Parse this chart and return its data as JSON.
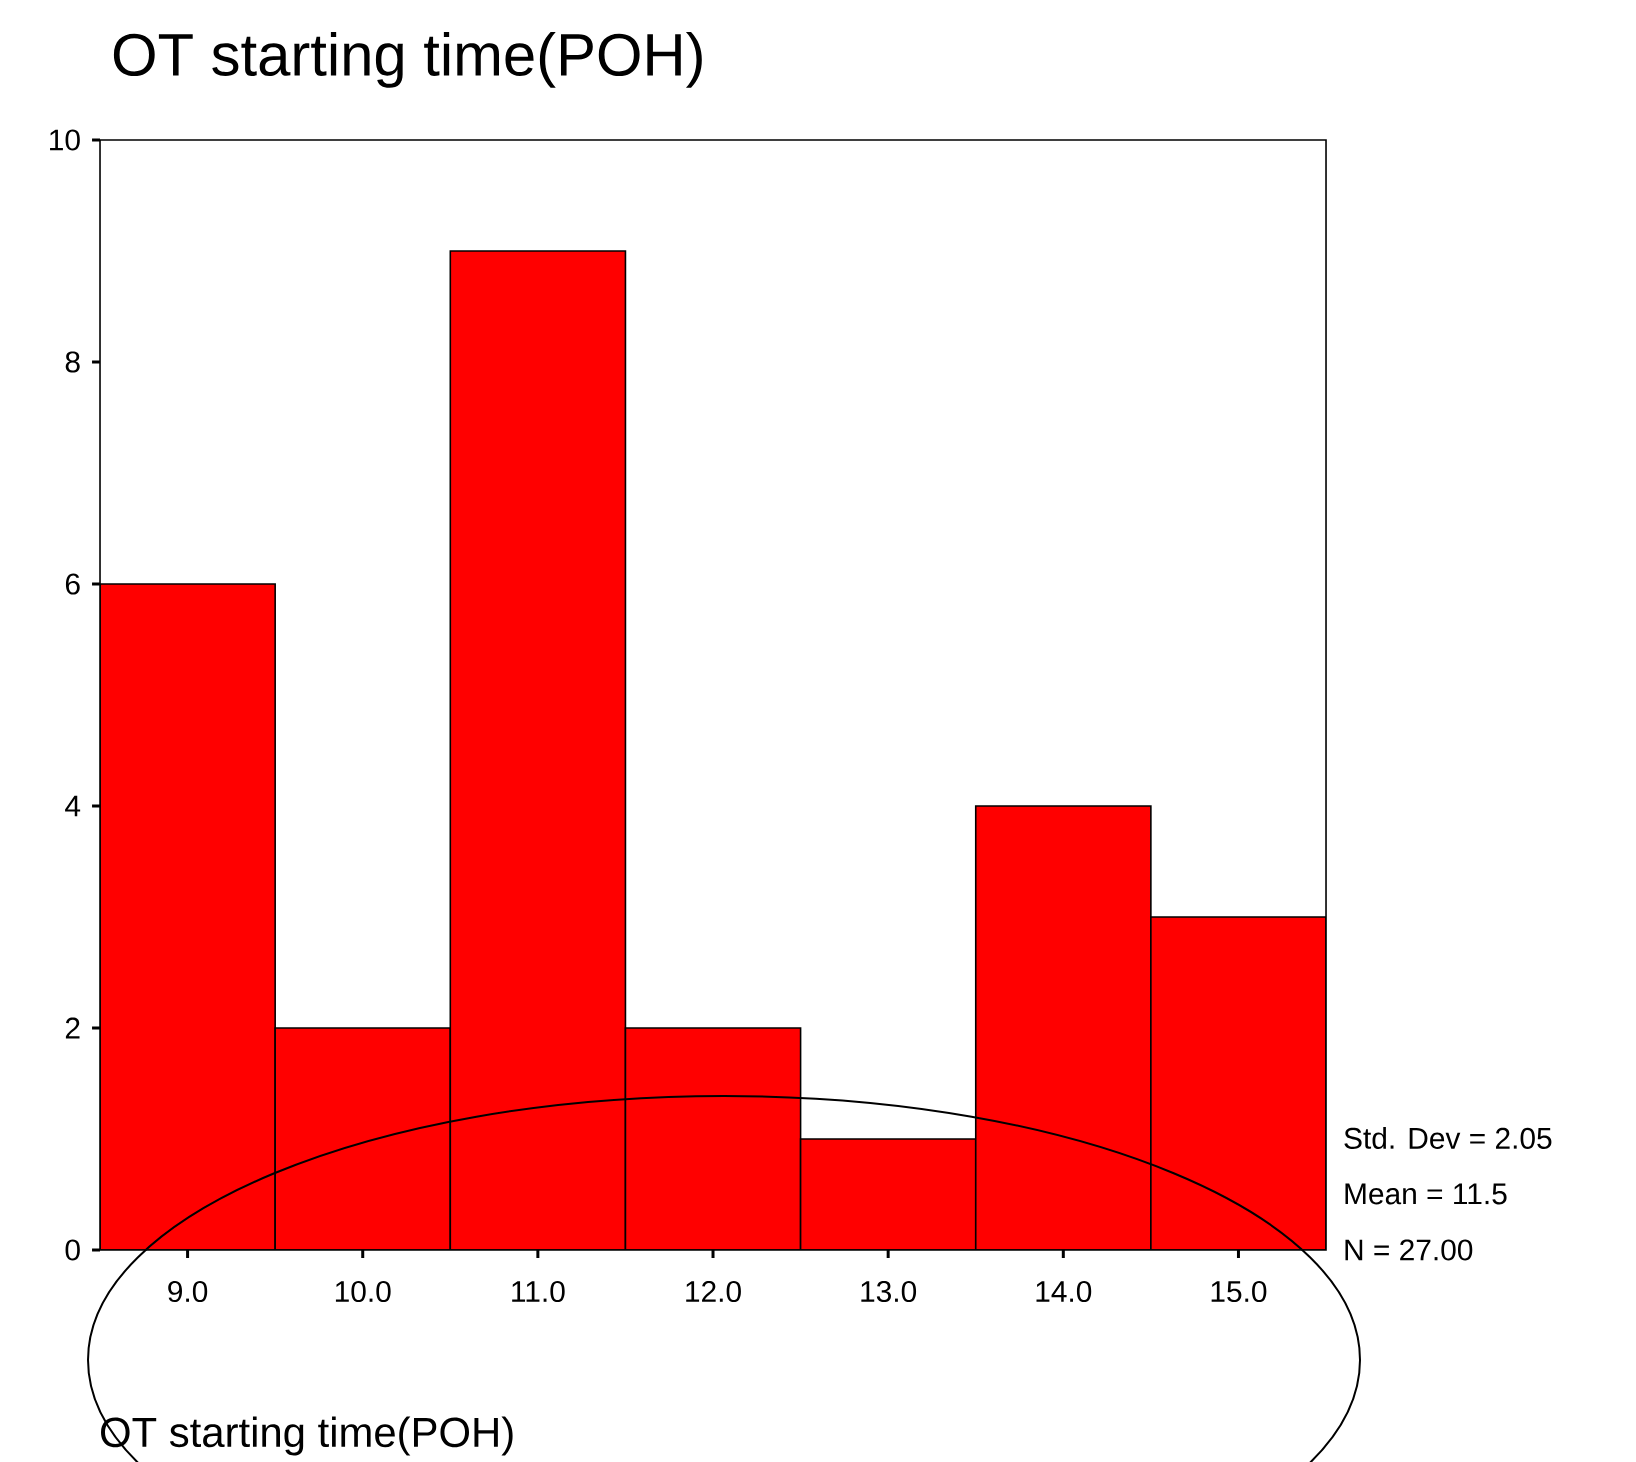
{
  "chart_data": {
    "type": "histogram",
    "title": "OT starting time(POH)",
    "xlabel": "OT starting time(POH)",
    "bins": [
      8.5,
      9.5,
      10.5,
      11.5,
      12.5,
      13.5,
      14.5,
      15.5
    ],
    "values": [
      6,
      2,
      9,
      2,
      1,
      4,
      3
    ],
    "color": "#ff0000",
    "xlim": [
      8.5,
      15.5
    ],
    "xticks": [
      {
        "value": 9,
        "label": "9.0"
      },
      {
        "value": 10,
        "label": "10.0"
      },
      {
        "value": 11,
        "label": "11.0"
      },
      {
        "value": 12,
        "label": "12.0"
      },
      {
        "value": 13,
        "label": "13.0"
      },
      {
        "value": 14,
        "label": "14.0"
      },
      {
        "value": 15,
        "label": "15.0"
      }
    ],
    "ylim": [
      0,
      10
    ],
    "yticks": [
      0,
      2,
      4,
      6,
      8,
      10
    ],
    "grid": false,
    "annotations": [
      "Std. Dev = 2.05",
      "Mean = 11.5",
      "N = 27.00"
    ]
  }
}
